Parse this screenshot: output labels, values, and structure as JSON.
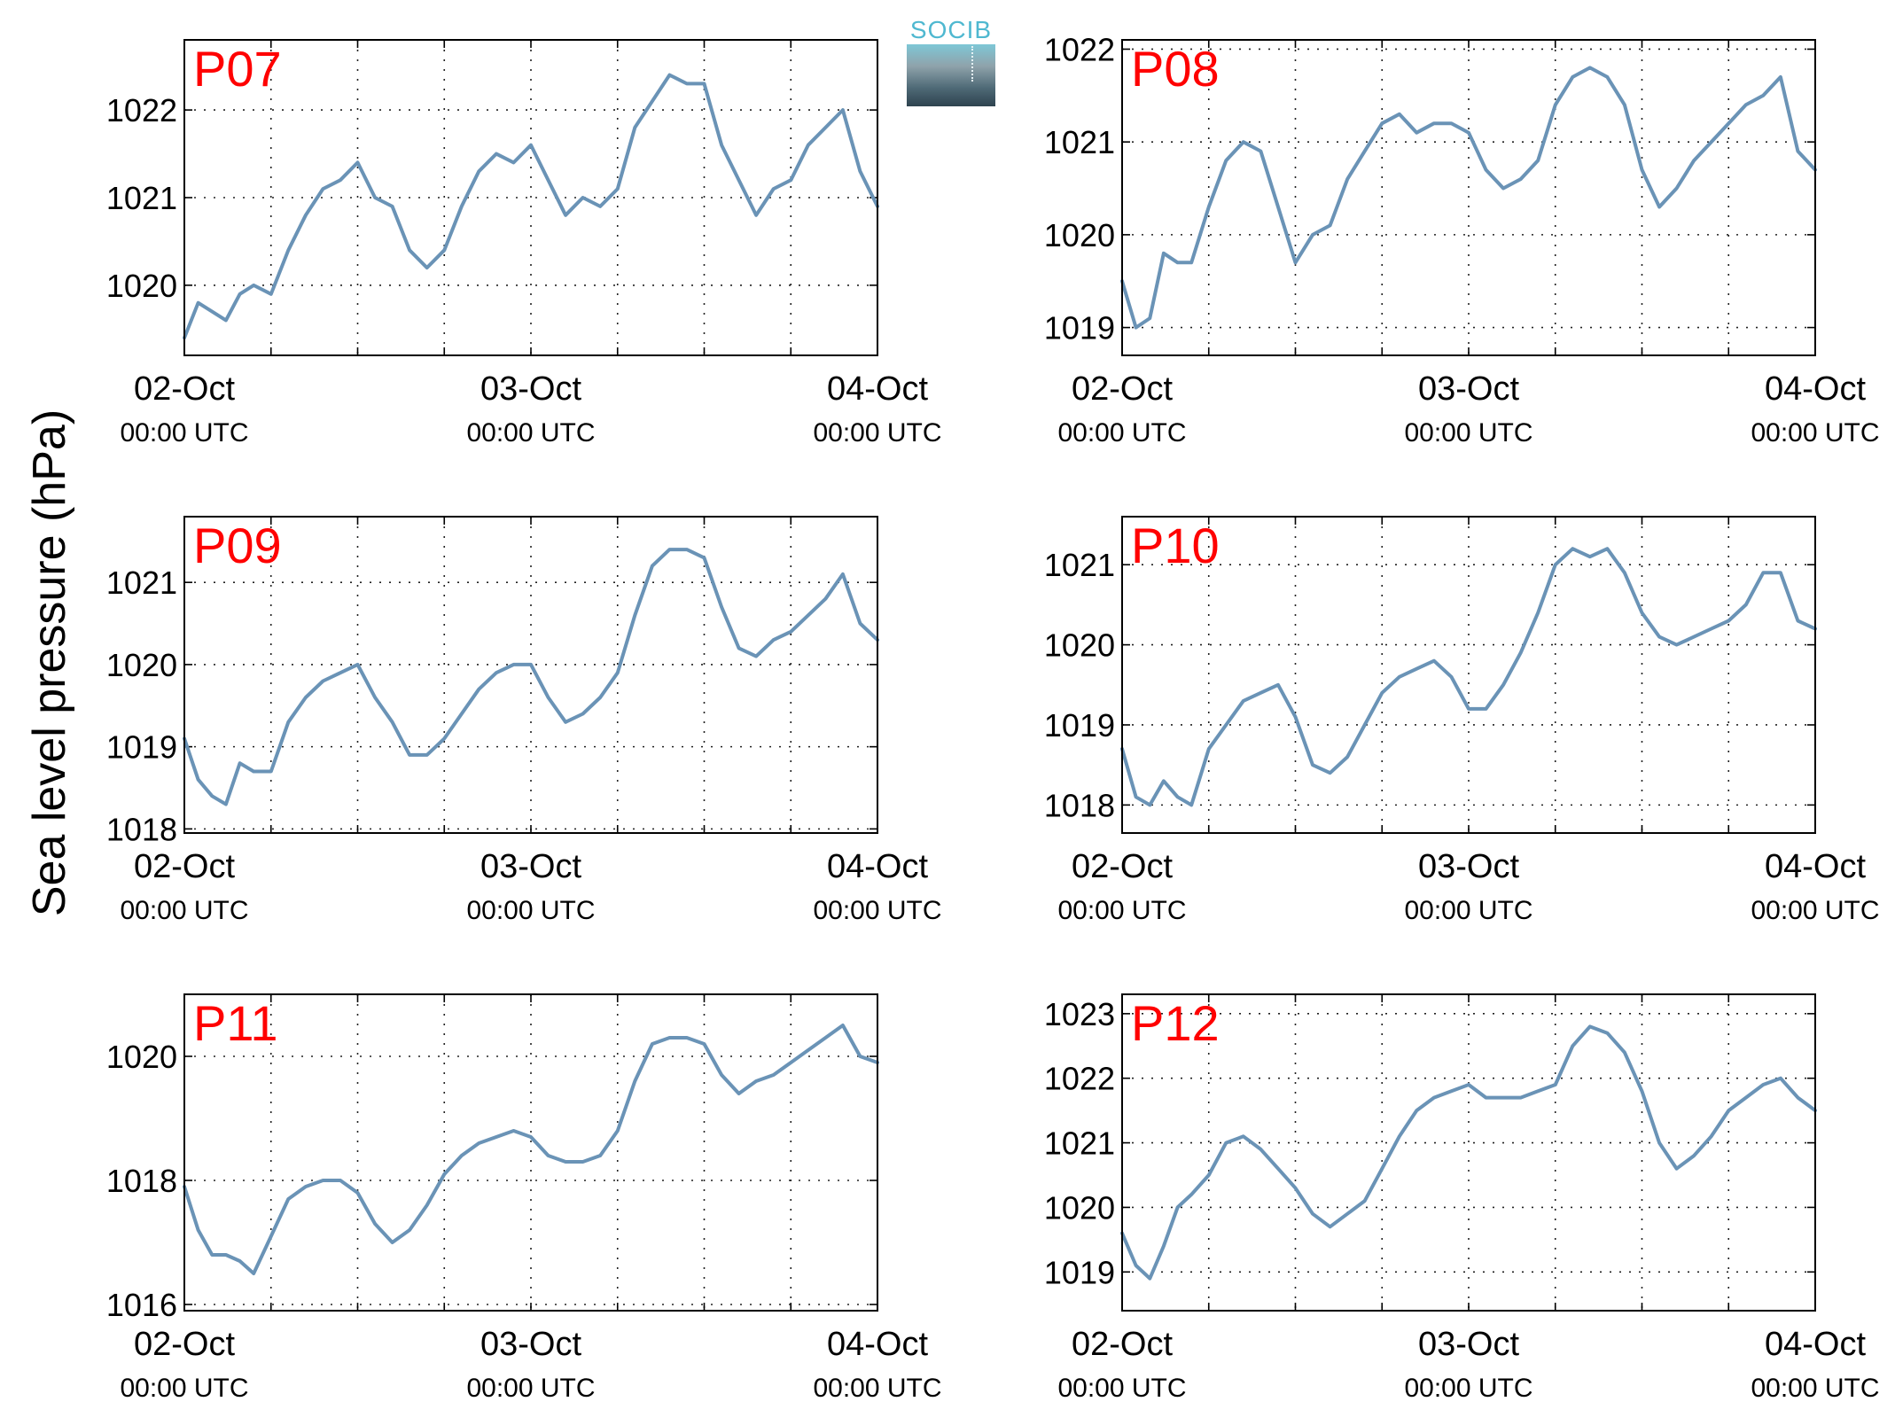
{
  "figure": {
    "ylabel": "Sea level pressure (hPa)",
    "logo_text": "SOCIB",
    "line_color": "#6a93b6",
    "label_color": "#ff0000"
  },
  "chart_data": [
    {
      "type": "line",
      "title": "P07",
      "x_ticks": [
        {
          "day": 0,
          "date": "02-Oct",
          "time": "00:00 UTC"
        },
        {
          "day": 1,
          "date": "03-Oct",
          "time": "00:00 UTC"
        },
        {
          "day": 2,
          "date": "04-Oct",
          "time": "00:00 UTC"
        }
      ],
      "xlim": [
        0,
        2
      ],
      "ylim": [
        1019.2,
        1022.8
      ],
      "yticks": [
        1020,
        1021,
        1022
      ],
      "grid": true,
      "x": [
        0.0,
        0.04,
        0.08,
        0.12,
        0.16,
        0.2,
        0.25,
        0.3,
        0.35,
        0.4,
        0.45,
        0.5,
        0.55,
        0.6,
        0.65,
        0.7,
        0.75,
        0.8,
        0.85,
        0.9,
        0.95,
        1.0,
        1.05,
        1.1,
        1.15,
        1.2,
        1.25,
        1.3,
        1.35,
        1.4,
        1.45,
        1.5,
        1.55,
        1.6,
        1.65,
        1.7,
        1.75,
        1.8,
        1.85,
        1.9,
        1.95,
        2.0
      ],
      "y": [
        1019.4,
        1019.8,
        1019.7,
        1019.6,
        1019.9,
        1020.0,
        1019.9,
        1020.4,
        1020.8,
        1021.1,
        1021.2,
        1021.4,
        1021.0,
        1020.9,
        1020.4,
        1020.2,
        1020.4,
        1020.9,
        1021.3,
        1021.5,
        1021.4,
        1021.6,
        1021.2,
        1020.8,
        1021.0,
        1020.9,
        1021.1,
        1021.8,
        1022.1,
        1022.4,
        1022.3,
        1022.3,
        1021.6,
        1021.2,
        1020.8,
        1021.1,
        1021.2,
        1021.6,
        1021.8,
        1022.0,
        1021.3,
        1020.9
      ]
    },
    {
      "type": "line",
      "title": "P08",
      "x_ticks": [
        {
          "day": 0,
          "date": "02-Oct",
          "time": "00:00 UTC"
        },
        {
          "day": 1,
          "date": "03-Oct",
          "time": "00:00 UTC"
        },
        {
          "day": 2,
          "date": "04-Oct",
          "time": "00:00 UTC"
        }
      ],
      "xlim": [
        0,
        2
      ],
      "ylim": [
        1018.7,
        1022.1
      ],
      "yticks": [
        1019,
        1020,
        1021,
        1022
      ],
      "grid": true,
      "x": [
        0.0,
        0.04,
        0.08,
        0.12,
        0.16,
        0.2,
        0.25,
        0.3,
        0.35,
        0.4,
        0.45,
        0.5,
        0.55,
        0.6,
        0.65,
        0.7,
        0.75,
        0.8,
        0.85,
        0.9,
        0.95,
        1.0,
        1.05,
        1.1,
        1.15,
        1.2,
        1.25,
        1.3,
        1.35,
        1.4,
        1.45,
        1.5,
        1.55,
        1.6,
        1.65,
        1.7,
        1.75,
        1.8,
        1.85,
        1.9,
        1.95,
        2.0
      ],
      "y": [
        1019.5,
        1019.0,
        1019.1,
        1019.8,
        1019.7,
        1019.7,
        1020.3,
        1020.8,
        1021.0,
        1020.9,
        1020.3,
        1019.7,
        1020.0,
        1020.1,
        1020.6,
        1020.9,
        1021.2,
        1021.3,
        1021.1,
        1021.2,
        1021.2,
        1021.1,
        1020.7,
        1020.5,
        1020.6,
        1020.8,
        1021.4,
        1021.7,
        1021.8,
        1021.7,
        1021.4,
        1020.7,
        1020.3,
        1020.5,
        1020.8,
        1021.0,
        1021.2,
        1021.4,
        1021.5,
        1021.7,
        1020.9,
        1020.7
      ]
    },
    {
      "type": "line",
      "title": "P09",
      "x_ticks": [
        {
          "day": 0,
          "date": "02-Oct",
          "time": "00:00 UTC"
        },
        {
          "day": 1,
          "date": "03-Oct",
          "time": "00:00 UTC"
        },
        {
          "day": 2,
          "date": "04-Oct",
          "time": "00:00 UTC"
        }
      ],
      "xlim": [
        0,
        2
      ],
      "ylim": [
        1017.95,
        1021.8
      ],
      "yticks": [
        1018,
        1019,
        1020,
        1021
      ],
      "grid": true,
      "x": [
        0.0,
        0.04,
        0.08,
        0.12,
        0.16,
        0.2,
        0.25,
        0.3,
        0.35,
        0.4,
        0.45,
        0.5,
        0.55,
        0.6,
        0.65,
        0.7,
        0.75,
        0.8,
        0.85,
        0.9,
        0.95,
        1.0,
        1.05,
        1.1,
        1.15,
        1.2,
        1.25,
        1.3,
        1.35,
        1.4,
        1.45,
        1.5,
        1.55,
        1.6,
        1.65,
        1.7,
        1.75,
        1.8,
        1.85,
        1.9,
        1.95,
        2.0
      ],
      "y": [
        1019.1,
        1018.6,
        1018.4,
        1018.3,
        1018.8,
        1018.7,
        1018.7,
        1019.3,
        1019.6,
        1019.8,
        1019.9,
        1020.0,
        1019.6,
        1019.3,
        1018.9,
        1018.9,
        1019.1,
        1019.4,
        1019.7,
        1019.9,
        1020.0,
        1020.0,
        1019.6,
        1019.3,
        1019.4,
        1019.6,
        1019.9,
        1020.6,
        1021.2,
        1021.4,
        1021.4,
        1021.3,
        1020.7,
        1020.2,
        1020.1,
        1020.3,
        1020.4,
        1020.6,
        1020.8,
        1021.1,
        1020.5,
        1020.3
      ]
    },
    {
      "type": "line",
      "title": "P10",
      "x_ticks": [
        {
          "day": 0,
          "date": "02-Oct",
          "time": "00:00 UTC"
        },
        {
          "day": 1,
          "date": "03-Oct",
          "time": "00:00 UTC"
        },
        {
          "day": 2,
          "date": "04-Oct",
          "time": "00:00 UTC"
        }
      ],
      "xlim": [
        0,
        2
      ],
      "ylim": [
        1017.65,
        1021.6
      ],
      "yticks": [
        1018,
        1019,
        1020,
        1021
      ],
      "grid": true,
      "x": [
        0.0,
        0.04,
        0.08,
        0.12,
        0.16,
        0.2,
        0.25,
        0.3,
        0.35,
        0.4,
        0.45,
        0.5,
        0.55,
        0.6,
        0.65,
        0.7,
        0.75,
        0.8,
        0.85,
        0.9,
        0.95,
        1.0,
        1.05,
        1.1,
        1.15,
        1.2,
        1.25,
        1.3,
        1.35,
        1.4,
        1.45,
        1.5,
        1.55,
        1.6,
        1.65,
        1.7,
        1.75,
        1.8,
        1.85,
        1.9,
        1.95,
        2.0
      ],
      "y": [
        1018.7,
        1018.1,
        1018.0,
        1018.3,
        1018.1,
        1018.0,
        1018.7,
        1019.0,
        1019.3,
        1019.4,
        1019.5,
        1019.1,
        1018.5,
        1018.4,
        1018.6,
        1019.0,
        1019.4,
        1019.6,
        1019.7,
        1019.8,
        1019.6,
        1019.2,
        1019.2,
        1019.5,
        1019.9,
        1020.4,
        1021.0,
        1021.2,
        1021.1,
        1021.2,
        1020.9,
        1020.4,
        1020.1,
        1020.0,
        1020.1,
        1020.2,
        1020.3,
        1020.5,
        1020.9,
        1020.9,
        1020.3,
        1020.2
      ]
    },
    {
      "type": "line",
      "title": "P11",
      "x_ticks": [
        {
          "day": 0,
          "date": "02-Oct",
          "time": "00:00 UTC"
        },
        {
          "day": 1,
          "date": "03-Oct",
          "time": "00:00 UTC"
        },
        {
          "day": 2,
          "date": "04-Oct",
          "time": "00:00 UTC"
        }
      ],
      "xlim": [
        0,
        2
      ],
      "ylim": [
        1015.9,
        1021.0
      ],
      "yticks": [
        1016,
        1018,
        1020
      ],
      "grid": true,
      "x": [
        0.0,
        0.04,
        0.08,
        0.12,
        0.16,
        0.2,
        0.25,
        0.3,
        0.35,
        0.4,
        0.45,
        0.5,
        0.55,
        0.6,
        0.65,
        0.7,
        0.75,
        0.8,
        0.85,
        0.9,
        0.95,
        1.0,
        1.05,
        1.1,
        1.15,
        1.2,
        1.25,
        1.3,
        1.35,
        1.4,
        1.45,
        1.5,
        1.55,
        1.6,
        1.65,
        1.7,
        1.75,
        1.8,
        1.85,
        1.9,
        1.95,
        2.0
      ],
      "y": [
        1017.9,
        1017.2,
        1016.8,
        1016.8,
        1016.7,
        1016.5,
        1017.1,
        1017.7,
        1017.9,
        1018.0,
        1018.0,
        1017.8,
        1017.3,
        1017.0,
        1017.2,
        1017.6,
        1018.1,
        1018.4,
        1018.6,
        1018.7,
        1018.8,
        1018.7,
        1018.4,
        1018.3,
        1018.3,
        1018.4,
        1018.8,
        1019.6,
        1020.2,
        1020.3,
        1020.3,
        1020.2,
        1019.7,
        1019.4,
        1019.6,
        1019.7,
        1019.9,
        1020.1,
        1020.3,
        1020.5,
        1020.0,
        1019.9
      ]
    },
    {
      "type": "line",
      "title": "P12",
      "x_ticks": [
        {
          "day": 0,
          "date": "02-Oct",
          "time": "00:00 UTC"
        },
        {
          "day": 1,
          "date": "03-Oct",
          "time": "00:00 UTC"
        },
        {
          "day": 2,
          "date": "04-Oct",
          "time": "00:00 UTC"
        }
      ],
      "xlim": [
        0,
        2
      ],
      "ylim": [
        1018.4,
        1023.3
      ],
      "yticks": [
        1019,
        1020,
        1021,
        1022,
        1023
      ],
      "grid": true,
      "x": [
        0.0,
        0.04,
        0.08,
        0.12,
        0.16,
        0.2,
        0.25,
        0.3,
        0.35,
        0.4,
        0.45,
        0.5,
        0.55,
        0.6,
        0.65,
        0.7,
        0.75,
        0.8,
        0.85,
        0.9,
        0.95,
        1.0,
        1.05,
        1.1,
        1.15,
        1.2,
        1.25,
        1.3,
        1.35,
        1.4,
        1.45,
        1.5,
        1.55,
        1.6,
        1.65,
        1.7,
        1.75,
        1.8,
        1.85,
        1.9,
        1.95,
        2.0
      ],
      "y": [
        1019.6,
        1019.1,
        1018.9,
        1019.4,
        1020.0,
        1020.2,
        1020.5,
        1021.0,
        1021.1,
        1020.9,
        1020.6,
        1020.3,
        1019.9,
        1019.7,
        1019.9,
        1020.1,
        1020.6,
        1021.1,
        1021.5,
        1021.7,
        1021.8,
        1021.9,
        1021.7,
        1021.7,
        1021.7,
        1021.8,
        1021.9,
        1022.5,
        1022.8,
        1022.7,
        1022.4,
        1021.8,
        1021.0,
        1020.6,
        1020.8,
        1021.1,
        1021.5,
        1021.7,
        1021.9,
        1022.0,
        1021.7,
        1021.5
      ]
    }
  ]
}
